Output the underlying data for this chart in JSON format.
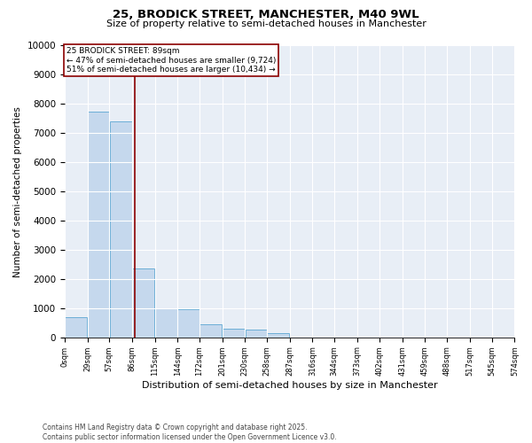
{
  "title_line1": "25, BRODICK STREET, MANCHESTER, M40 9WL",
  "title_line2": "Size of property relative to semi-detached houses in Manchester",
  "xlabel": "Distribution of semi-detached houses by size in Manchester",
  "ylabel": "Number of semi-detached properties",
  "annotation_line1": "25 BRODICK STREET: 89sqm",
  "annotation_line2": "← 47% of semi-detached houses are smaller (9,724)",
  "annotation_line3": "51% of semi-detached houses are larger (10,434) →",
  "footer_line1": "Contains HM Land Registry data © Crown copyright and database right 2025.",
  "footer_line2": "Contains public sector information licensed under the Open Government Licence v3.0.",
  "bar_edges": [
    0,
    29,
    57,
    86,
    115,
    144,
    172,
    201,
    230,
    258,
    287,
    316,
    344,
    373,
    402,
    431,
    459,
    488,
    517,
    545,
    574
  ],
  "bar_heights": [
    700,
    7750,
    7400,
    2350,
    1000,
    950,
    450,
    300,
    250,
    150,
    0,
    0,
    0,
    0,
    0,
    0,
    0,
    0,
    0,
    0
  ],
  "bar_color": "#c5d8ed",
  "bar_edgecolor": "#6baed6",
  "vline_color": "#8b0000",
  "vline_x": 89,
  "annotation_box_edgecolor": "#8b0000",
  "annotation_box_facecolor": "#ffffff",
  "ylim": [
    0,
    10000
  ],
  "xlim": [
    0,
    574
  ],
  "background_color": "#e8eef6",
  "grid_color": "#ffffff",
  "fig_facecolor": "#ffffff",
  "tick_labels": [
    "0sqm",
    "29sqm",
    "57sqm",
    "86sqm",
    "115sqm",
    "144sqm",
    "172sqm",
    "201sqm",
    "230sqm",
    "258sqm",
    "287sqm",
    "316sqm",
    "344sqm",
    "373sqm",
    "402sqm",
    "431sqm",
    "459sqm",
    "488sqm",
    "517sqm",
    "545sqm",
    "574sqm"
  ],
  "title1_fontsize": 9.5,
  "title2_fontsize": 8,
  "ylabel_fontsize": 7.5,
  "xlabel_fontsize": 8,
  "ytick_fontsize": 7.5,
  "xtick_fontsize": 6,
  "annotation_fontsize": 6.5,
  "footer_fontsize": 5.5
}
